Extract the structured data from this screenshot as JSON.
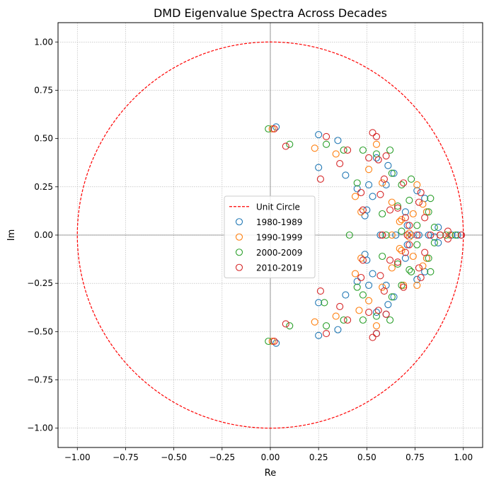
{
  "chart_data": {
    "type": "scatter",
    "title": "DMD Eigenvalue Spectra Across Decades",
    "xlabel": "Re",
    "ylabel": "Im",
    "xlim": [
      -1.1,
      1.1
    ],
    "ylim": [
      -1.1,
      1.1
    ],
    "xticks": [
      -1.0,
      -0.75,
      -0.5,
      -0.25,
      0.0,
      0.25,
      0.5,
      0.75,
      1.0
    ],
    "yticks": [
      -1.0,
      -0.75,
      -0.5,
      -0.25,
      0.0,
      0.25,
      0.5,
      0.75,
      1.0
    ],
    "xtick_labels": [
      "−1.00",
      "−0.75",
      "−0.50",
      "−0.25",
      "0.00",
      "0.25",
      "0.50",
      "0.75",
      "1.00"
    ],
    "ytick_labels": [
      "−1.00",
      "−0.75",
      "−0.50",
      "−0.25",
      "0.00",
      "0.25",
      "0.50",
      "0.75",
      "1.00"
    ],
    "grid": true,
    "legend_position": "center-left",
    "unit_circle": {
      "label": "Unit Circle",
      "radius": 1.0,
      "color": "#ff0000",
      "style": "dashed"
    },
    "series": [
      {
        "name": "1980-1989",
        "color": "#1f77b4",
        "points": [
          [
            0.03,
            0.56
          ],
          [
            0.25,
            0.52
          ],
          [
            0.35,
            0.49
          ],
          [
            0.25,
            0.35
          ],
          [
            0.39,
            0.31
          ],
          [
            0.45,
            0.24
          ],
          [
            0.51,
            0.26
          ],
          [
            0.53,
            0.2
          ],
          [
            0.6,
            0.26
          ],
          [
            0.61,
            0.36
          ],
          [
            0.55,
            0.4
          ],
          [
            0.64,
            0.32
          ],
          [
            0.7,
            0.12
          ],
          [
            0.76,
            0.23
          ],
          [
            0.8,
            0.19
          ],
          [
            0.81,
            0.12
          ],
          [
            0.87,
            0.04
          ],
          [
            0.71,
            0.05
          ],
          [
            0.5,
            0.13
          ],
          [
            0.49,
            0.1
          ],
          [
            0.57,
            0.0
          ],
          [
            0.65,
            0.0
          ],
          [
            0.73,
            0.0
          ],
          [
            0.77,
            0.0
          ],
          [
            0.82,
            0.0
          ],
          [
            0.88,
            0.0
          ],
          [
            0.94,
            0.0
          ],
          [
            0.97,
            0.0
          ],
          [
            0.99,
            0.0
          ],
          [
            0.03,
            -0.56
          ],
          [
            0.25,
            -0.52
          ],
          [
            0.35,
            -0.49
          ],
          [
            0.25,
            -0.35
          ],
          [
            0.39,
            -0.31
          ],
          [
            0.45,
            -0.24
          ],
          [
            0.51,
            -0.26
          ],
          [
            0.53,
            -0.2
          ],
          [
            0.6,
            -0.26
          ],
          [
            0.61,
            -0.36
          ],
          [
            0.55,
            -0.4
          ],
          [
            0.64,
            -0.32
          ],
          [
            0.7,
            -0.12
          ],
          [
            0.76,
            -0.23
          ],
          [
            0.8,
            -0.19
          ],
          [
            0.81,
            -0.12
          ],
          [
            0.87,
            -0.04
          ],
          [
            0.71,
            -0.05
          ],
          [
            0.5,
            -0.13
          ],
          [
            0.49,
            -0.1
          ],
          [
            0.55,
            -0.51
          ],
          [
            0.6,
            -0.41
          ],
          [
            0.85,
            -0.01
          ]
        ]
      },
      {
        "name": "1990-1999",
        "color": "#ff7f0e",
        "points": [
          [
            0.01,
            0.55
          ],
          [
            0.23,
            0.45
          ],
          [
            0.34,
            0.42
          ],
          [
            0.44,
            0.2
          ],
          [
            0.51,
            0.34
          ],
          [
            0.55,
            0.47
          ],
          [
            0.58,
            0.27
          ],
          [
            0.63,
            0.17
          ],
          [
            0.68,
            0.08
          ],
          [
            0.72,
            0.01
          ],
          [
            0.76,
            0.26
          ],
          [
            0.79,
            0.16
          ],
          [
            0.81,
            0.12
          ],
          [
            0.88,
            0.0
          ],
          [
            0.93,
            0.0
          ],
          [
            0.63,
            0.0
          ],
          [
            0.58,
            0.0
          ],
          [
            0.67,
            0.07
          ],
          [
            0.74,
            0.11
          ],
          [
            0.47,
            0.12
          ],
          [
            0.01,
            -0.55
          ],
          [
            0.23,
            -0.45
          ],
          [
            0.34,
            -0.42
          ],
          [
            0.44,
            -0.2
          ],
          [
            0.51,
            -0.34
          ],
          [
            0.55,
            -0.47
          ],
          [
            0.58,
            -0.27
          ],
          [
            0.63,
            -0.17
          ],
          [
            0.68,
            -0.08
          ],
          [
            0.72,
            -0.01
          ],
          [
            0.76,
            -0.26
          ],
          [
            0.79,
            -0.16
          ],
          [
            0.81,
            -0.12
          ],
          [
            0.67,
            -0.07
          ],
          [
            0.74,
            -0.11
          ],
          [
            0.47,
            -0.12
          ],
          [
            0.46,
            -0.39
          ],
          [
            0.69,
            -0.26
          ]
        ]
      },
      {
        "name": "2000-2009",
        "color": "#2ca02c",
        "points": [
          [
            -0.01,
            0.55
          ],
          [
            0.1,
            0.47
          ],
          [
            0.29,
            0.47
          ],
          [
            0.38,
            0.44
          ],
          [
            0.45,
            0.27
          ],
          [
            0.48,
            0.44
          ],
          [
            0.55,
            0.42
          ],
          [
            0.62,
            0.44
          ],
          [
            0.63,
            0.32
          ],
          [
            0.68,
            0.26
          ],
          [
            0.73,
            0.29
          ],
          [
            0.66,
            0.15
          ],
          [
            0.72,
            0.18
          ],
          [
            0.76,
            0.05
          ],
          [
            0.82,
            0.12
          ],
          [
            0.83,
            0.19
          ],
          [
            0.85,
            0.04
          ],
          [
            0.91,
            0.0
          ],
          [
            0.41,
            0.0
          ],
          [
            0.58,
            0.11
          ],
          [
            0.6,
            0.0
          ],
          [
            0.68,
            0.02
          ],
          [
            0.96,
            0.0
          ],
          [
            -0.01,
            -0.55
          ],
          [
            0.1,
            -0.47
          ],
          [
            0.29,
            -0.47
          ],
          [
            0.38,
            -0.44
          ],
          [
            0.45,
            -0.27
          ],
          [
            0.48,
            -0.44
          ],
          [
            0.55,
            -0.42
          ],
          [
            0.62,
            -0.44
          ],
          [
            0.63,
            -0.32
          ],
          [
            0.68,
            -0.26
          ],
          [
            0.73,
            -0.19
          ],
          [
            0.66,
            -0.15
          ],
          [
            0.72,
            -0.18
          ],
          [
            0.76,
            -0.05
          ],
          [
            0.82,
            -0.12
          ],
          [
            0.83,
            -0.19
          ],
          [
            0.85,
            -0.04
          ],
          [
            0.58,
            -0.11
          ],
          [
            0.28,
            -0.35
          ],
          [
            0.48,
            -0.31
          ]
        ]
      },
      {
        "name": "2010-2019",
        "color": "#d62728",
        "points": [
          [
            0.02,
            0.55
          ],
          [
            0.08,
            0.46
          ],
          [
            0.26,
            0.29
          ],
          [
            0.29,
            0.51
          ],
          [
            0.36,
            0.37
          ],
          [
            0.4,
            0.44
          ],
          [
            0.47,
            0.22
          ],
          [
            0.48,
            0.13
          ],
          [
            0.51,
            0.4
          ],
          [
            0.53,
            0.53
          ],
          [
            0.55,
            0.51
          ],
          [
            0.56,
            0.39
          ],
          [
            0.57,
            0.21
          ],
          [
            0.59,
            0.29
          ],
          [
            0.6,
            0.41
          ],
          [
            0.62,
            0.13
          ],
          [
            0.66,
            0.14
          ],
          [
            0.69,
            0.27
          ],
          [
            0.7,
            0.09
          ],
          [
            0.72,
            0.05
          ],
          [
            0.77,
            0.17
          ],
          [
            0.78,
            0.22
          ],
          [
            0.8,
            0.09
          ],
          [
            0.83,
            0.0
          ],
          [
            0.88,
            0.0
          ],
          [
            0.92,
            0.02
          ],
          [
            0.99,
            0.0
          ],
          [
            0.58,
            0.0
          ],
          [
            0.76,
            0.0
          ],
          [
            0.71,
            0.0
          ],
          [
            0.02,
            -0.55
          ],
          [
            0.08,
            -0.46
          ],
          [
            0.26,
            -0.29
          ],
          [
            0.29,
            -0.51
          ],
          [
            0.36,
            -0.37
          ],
          [
            0.4,
            -0.44
          ],
          [
            0.47,
            -0.22
          ],
          [
            0.48,
            -0.13
          ],
          [
            0.51,
            -0.4
          ],
          [
            0.53,
            -0.53
          ],
          [
            0.55,
            -0.51
          ],
          [
            0.56,
            -0.39
          ],
          [
            0.57,
            -0.21
          ],
          [
            0.59,
            -0.29
          ],
          [
            0.6,
            -0.41
          ],
          [
            0.62,
            -0.13
          ],
          [
            0.66,
            -0.14
          ],
          [
            0.69,
            -0.27
          ],
          [
            0.7,
            -0.09
          ],
          [
            0.72,
            -0.05
          ],
          [
            0.77,
            -0.17
          ],
          [
            0.78,
            -0.22
          ],
          [
            0.8,
            -0.09
          ],
          [
            0.92,
            -0.02
          ]
        ]
      }
    ]
  }
}
